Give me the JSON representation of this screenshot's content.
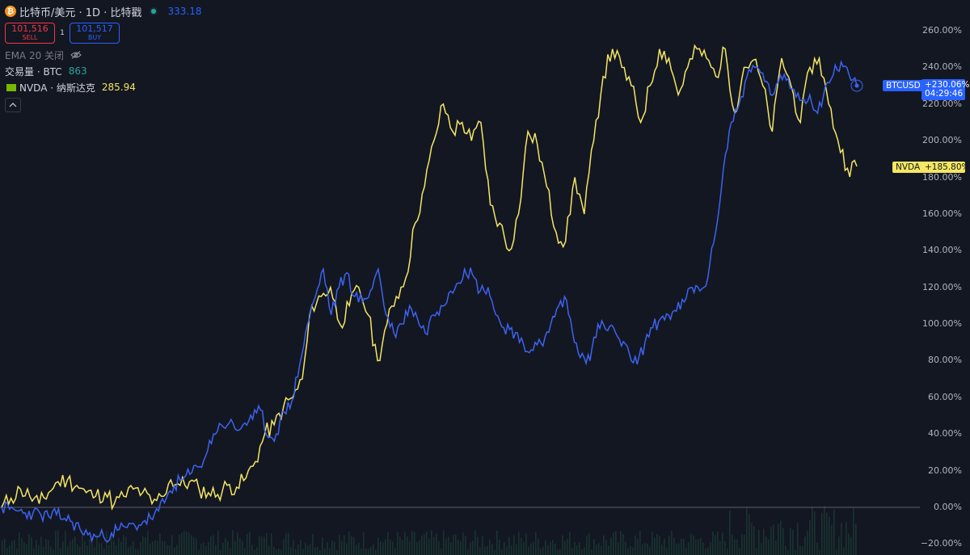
{
  "header": {
    "btc_logo_glyph": "₿",
    "symbol_title": "比特币/美元 · 1D · 比特戳",
    "last_value": "333.18",
    "sell_price": "101,516",
    "sell_label": "SELL",
    "spread": "1",
    "buy_price": "101,517",
    "buy_label": "BUY",
    "ema_label": "EMA 20 关闭",
    "volume_label": "交易量 · BTC",
    "volume_value": "863",
    "compare_label": "NVDA · 纳斯达克",
    "compare_value": "285.94"
  },
  "price_scale": {
    "ticks": [
      "260.00%",
      "240.00%",
      "220.00%",
      "200.00%",
      "180.00%",
      "160.00%",
      "140.00%",
      "120.00%",
      "100.00%",
      "80.00%",
      "60.00%",
      "40.00%",
      "20.00%",
      "0.00%",
      "−20.00%"
    ]
  },
  "tags": {
    "btc_name": "BTCUSD",
    "btc_value": "+230.06%",
    "btc_countdown": "04:29:46",
    "nvda_name": "NVDA",
    "nvda_value": "+185.80%"
  },
  "colors": {
    "background": "#131722",
    "btc": "#3d63f0",
    "nvda": "#f5e663",
    "zero_line": "#5d606b",
    "volume": "#1f4a3a"
  },
  "chart_data": {
    "type": "line",
    "y_unit": "percent change",
    "ylim": [
      -25,
      270
    ],
    "grid": false,
    "series": [
      {
        "name": "BTCUSD",
        "color": "#3d63f0",
        "values": [
          0,
          -1,
          -2,
          -3,
          -3,
          -4,
          -5,
          -4,
          -6,
          -8,
          -12,
          -15,
          -16,
          -16,
          -14,
          -12,
          -11,
          -10,
          -8,
          -6,
          -2,
          5,
          12,
          15,
          18,
          22,
          28,
          40,
          45,
          46,
          42,
          46,
          48,
          53,
          38,
          40,
          52,
          58,
          78,
          100,
          115,
          130,
          105,
          120,
          128,
          115,
          112,
          118,
          130,
          105,
          95,
          100,
          110,
          103,
          95,
          105,
          110,
          117,
          122,
          130,
          127,
          118,
          120,
          105,
          98,
          98,
          90,
          85,
          90,
          88,
          100,
          110,
          113,
          90,
          84,
          80,
          100,
          97,
          98,
          88,
          84,
          78,
          90,
          98,
          103,
          105,
          107,
          112,
          120,
          118,
          125,
          150,
          185,
          210,
          220,
          235,
          240,
          237,
          225,
          232,
          233,
          228,
          222,
          225,
          215,
          230,
          236,
          243,
          236,
          230
        ]
      },
      {
        "name": "NVDA",
        "color": "#f5e663",
        "values": [
          0,
          5,
          10,
          6,
          2,
          8,
          14,
          15,
          12,
          8,
          6,
          8,
          2,
          6,
          10,
          8,
          2,
          6,
          15,
          12,
          14,
          10,
          8,
          7,
          12,
          11,
          16,
          25,
          40,
          45,
          55,
          60,
          70,
          110,
          115,
          120,
          100,
          110,
          120,
          105,
          80,
          100,
          115,
          125,
          155,
          175,
          200,
          220,
          205,
          210,
          200,
          210,
          165,
          155,
          140,
          160,
          205,
          198,
          175,
          150,
          145,
          180,
          160,
          200,
          235,
          250,
          240,
          230,
          210,
          230,
          250,
          245,
          225,
          240,
          250,
          245,
          235,
          250,
          215,
          240,
          244,
          230,
          205,
          245,
          230,
          210,
          240,
          245,
          220,
          200,
          185,
          186
        ]
      }
    ]
  }
}
